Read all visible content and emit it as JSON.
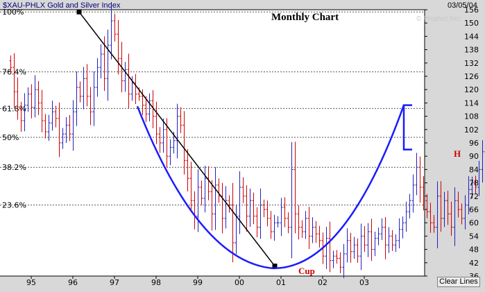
{
  "header": {
    "symbol_title": "$XAU-PHLX Gold and Silver Index",
    "date": "03/05/04",
    "watermark": "© Prophet.Net"
  },
  "clear_button_label": "Clear Lines",
  "chart_data": {
    "type": "ohlc",
    "title": "Monthly Chart",
    "ylim": [
      36,
      156
    ],
    "y_ticks": [
      "156",
      "150",
      "144",
      "138",
      "132",
      "126",
      "120",
      "114",
      "108",
      "102",
      "96",
      "90",
      "84",
      "78",
      "72",
      "66",
      "60",
      "54",
      "48",
      "42",
      "36"
    ],
    "x_ticks": [
      "95",
      "96",
      "97",
      "98",
      "99",
      "00",
      "01",
      "02",
      "03"
    ],
    "bull_color": "#2020c0",
    "bear_color": "#cc0000",
    "fib_levels": [
      {
        "label": "100%",
        "value": 155
      },
      {
        "label": "76.4%",
        "value": 128
      },
      {
        "label": "61.8%",
        "value": 111.5
      },
      {
        "label": "50%",
        "value": 98.5
      },
      {
        "label": "38.2%",
        "value": 85
      },
      {
        "label": "23.6%",
        "value": 68
      }
    ],
    "annotations": {
      "cup": "Cup",
      "handle": "H"
    },
    "lines": {
      "trendline": {
        "color": "#000000",
        "from": [
          1996.15,
          155
        ],
        "to": [
          2000.85,
          40.5
        ]
      },
      "cup_curve": {
        "color": "#1a1aff",
        "from": [
          1997.55,
          112.5
        ],
        "bottom": [
          2000.8,
          39.5
        ],
        "to": [
          2003.95,
          113
        ]
      },
      "handle": {
        "color": "#1a1aff",
        "points": [
          [
            2003.95,
            113
          ],
          [
            2004.15,
            113
          ],
          [
            2003.95,
            113
          ],
          [
            2003.95,
            93
          ],
          [
            2004.15,
            93
          ]
        ]
      }
    },
    "closes": [
      130,
      119,
      111,
      106,
      113,
      118,
      112,
      120,
      114,
      106,
      101,
      105,
      110,
      107,
      96,
      100,
      104,
      100,
      110,
      121,
      117,
      125,
      117,
      110,
      121,
      130,
      136,
      125,
      140,
      151,
      145,
      134,
      124,
      129,
      118,
      123,
      118,
      117,
      113,
      109,
      115,
      108,
      100,
      96,
      102,
      90,
      94,
      97,
      108,
      104,
      88,
      80,
      70,
      63,
      76,
      71,
      80,
      74,
      64,
      77,
      72,
      62,
      70,
      68,
      51,
      63,
      76,
      72,
      63,
      70,
      63,
      58,
      68,
      66,
      62,
      56,
      60,
      60,
      67,
      62,
      58,
      84,
      64,
      58,
      56,
      62,
      54,
      58,
      55,
      52,
      45,
      53,
      43,
      45,
      44,
      40,
      46,
      52,
      47,
      50,
      45,
      54,
      50,
      56,
      48,
      53,
      55,
      58,
      50,
      54,
      50,
      52,
      57,
      60,
      65,
      70,
      77,
      85,
      76,
      70,
      65,
      60,
      58,
      72,
      62,
      70,
      64,
      58,
      70,
      66,
      62,
      68,
      75,
      78,
      76,
      84,
      92,
      95,
      98,
      100,
      112,
      97,
      94,
      96,
      98
    ]
  }
}
